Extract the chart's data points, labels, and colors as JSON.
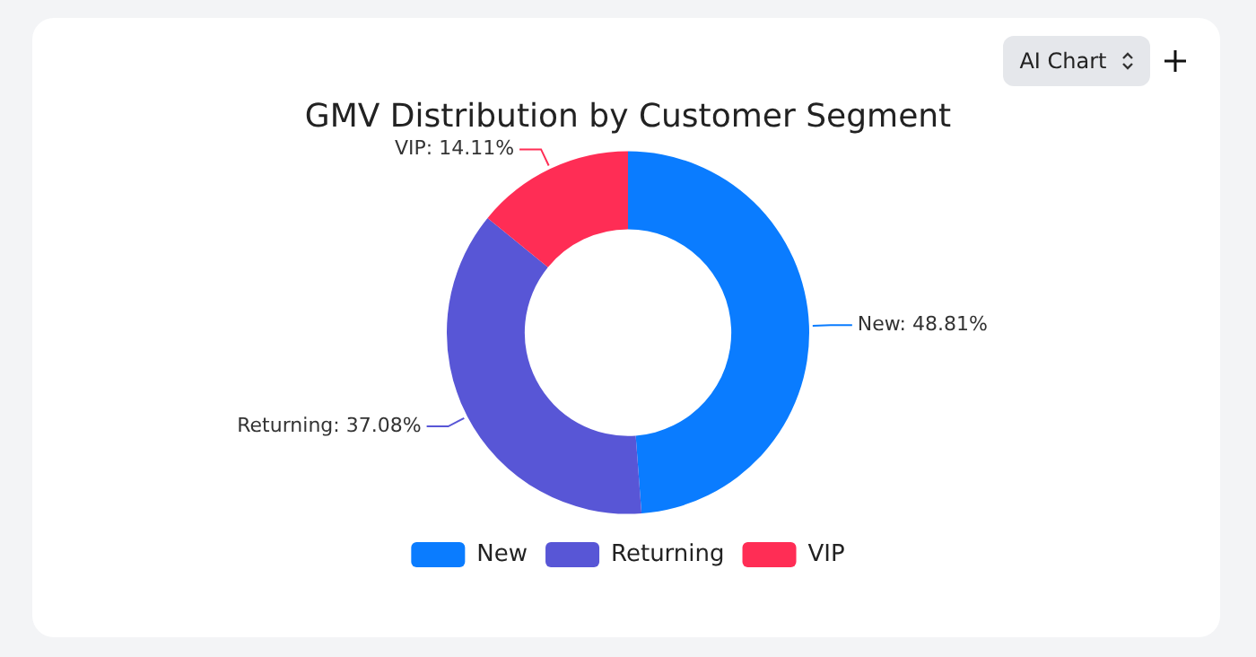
{
  "chart_data": {
    "type": "donut",
    "title": "GMV Distribution by Customer Segment",
    "categories": [
      "New",
      "Returning",
      "VIP"
    ],
    "values": [
      48.81,
      37.08,
      14.11
    ],
    "colors": [
      "#0a7cff",
      "#5856d6",
      "#ff2d55"
    ],
    "value_labels": [
      "New: 48.81%",
      "Returning: 37.08%",
      "VIP: 14.11%"
    ],
    "legend": "bottom",
    "annotations": [
      "AI Chart"
    ]
  }
}
